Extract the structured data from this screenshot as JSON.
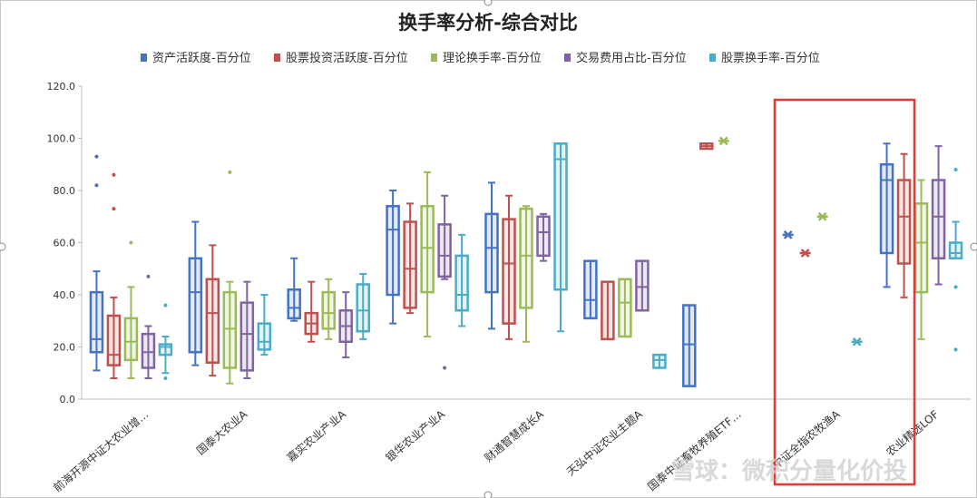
{
  "chart_data": {
    "type": "boxplot",
    "title": "换手率分析-综合对比",
    "ylim": [
      0,
      120
    ],
    "yticks": [
      "0.0",
      "20.0",
      "40.0",
      "60.0",
      "80.0",
      "100.0",
      "120.0"
    ],
    "grid": false,
    "legend_position": "top",
    "categories": [
      "前海开源中证大农业增…",
      "国泰大农业A",
      "嘉实农业产业A",
      "银华农业产业A",
      "财通智慧成长A",
      "天弘中证农业主题A",
      "国泰中证畜牧养殖ETF…",
      "中证全指农牧渔A",
      "农业精选LOF"
    ],
    "highlighted_category": "农业精选LOF",
    "series": [
      {
        "name": "资产活跃度-百分位",
        "color": "#4472c4",
        "boxes": [
          {
            "min": 11,
            "q1": 18,
            "median": 23,
            "q3": 41,
            "max": 49,
            "outliers": [
              82,
              93
            ]
          },
          {
            "min": 13,
            "q1": 18,
            "median": 41,
            "q3": 54,
            "max": 68,
            "outliers": []
          },
          {
            "min": 30,
            "q1": 31,
            "median": 35,
            "q3": 42,
            "max": 54,
            "outliers": []
          },
          {
            "min": 29,
            "q1": 40,
            "median": 65,
            "q3": 74,
            "max": 80,
            "outliers": []
          },
          {
            "min": 27,
            "q1": 41,
            "median": 58,
            "q3": 71,
            "max": 83,
            "outliers": []
          },
          {
            "min": 31,
            "q1": 31,
            "median": 38,
            "q3": 53,
            "max": 53,
            "outliers": []
          },
          {
            "min": 5,
            "q1": 5,
            "median": 21,
            "q3": 36,
            "max": 36,
            "outliers": []
          },
          {
            "single": 63
          },
          {
            "min": 43,
            "q1": 56,
            "median": 84,
            "q3": 90,
            "max": 98,
            "outliers": []
          }
        ]
      },
      {
        "name": "股票投资活跃度-百分位",
        "color": "#c0504d",
        "boxes": [
          {
            "min": 8,
            "q1": 13,
            "median": 17,
            "q3": 32,
            "max": 39,
            "outliers": [
              73,
              86
            ]
          },
          {
            "min": 9,
            "q1": 14,
            "median": 33,
            "q3": 46,
            "max": 59,
            "outliers": []
          },
          {
            "min": 22,
            "q1": 25,
            "median": 29,
            "q3": 33,
            "max": 45,
            "outliers": []
          },
          {
            "min": 33,
            "q1": 35,
            "median": 50,
            "q3": 68,
            "max": 75,
            "outliers": []
          },
          {
            "min": 23,
            "q1": 29,
            "median": 52,
            "q3": 69,
            "max": 78,
            "outliers": []
          },
          {
            "min": 23,
            "q1": 23,
            "median": 23,
            "q3": 45,
            "max": 45,
            "outliers": []
          },
          {
            "min": 96,
            "q1": 96,
            "median": 97,
            "q3": 98,
            "max": 98,
            "outliers": []
          },
          {
            "single": 56
          },
          {
            "min": 39,
            "q1": 52,
            "median": 70,
            "q3": 84,
            "max": 94,
            "outliers": []
          }
        ]
      },
      {
        "name": "理论换手率-百分位",
        "color": "#9bbb59",
        "boxes": [
          {
            "min": 8,
            "q1": 15,
            "median": 22,
            "q3": 31,
            "max": 43,
            "outliers": [
              60
            ]
          },
          {
            "min": 6,
            "q1": 12,
            "median": 27,
            "q3": 41,
            "max": 45,
            "outliers": [
              87
            ]
          },
          {
            "min": 23,
            "q1": 27,
            "median": 33,
            "q3": 41,
            "max": 46,
            "outliers": []
          },
          {
            "min": 24,
            "q1": 41,
            "median": 58,
            "q3": 74,
            "max": 87,
            "outliers": []
          },
          {
            "min": 22,
            "q1": 35,
            "median": 55,
            "q3": 73,
            "max": 74,
            "outliers": []
          },
          {
            "min": 24,
            "q1": 24,
            "median": 37,
            "q3": 46,
            "max": 46,
            "outliers": []
          },
          {
            "single": 99
          },
          {
            "single": 70
          },
          {
            "min": 23,
            "q1": 41,
            "median": 60,
            "q3": 75,
            "max": 84,
            "outliers": []
          }
        ]
      },
      {
        "name": "交易费用占比-百分位",
        "color": "#8064a2",
        "boxes": [
          {
            "min": 8,
            "q1": 12,
            "median": 18,
            "q3": 25,
            "max": 28,
            "outliers": [
              47
            ]
          },
          {
            "min": 8,
            "q1": 11,
            "median": 25,
            "q3": 37,
            "max": 45,
            "outliers": []
          },
          {
            "min": 16,
            "q1": 22,
            "median": 28,
            "q3": 34,
            "max": 41,
            "outliers": []
          },
          {
            "min": 46,
            "q1": 47,
            "median": 55,
            "q3": 67,
            "max": 78,
            "outliers": [
              12
            ]
          },
          {
            "min": 53,
            "q1": 55,
            "median": 64,
            "q3": 70,
            "max": 71,
            "outliers": []
          },
          {
            "min": 34,
            "q1": 34,
            "median": 43,
            "q3": 53,
            "max": 53,
            "outliers": []
          },
          null,
          null,
          {
            "min": 44,
            "q1": 54,
            "median": 70,
            "q3": 84,
            "max": 97,
            "outliers": []
          }
        ]
      },
      {
        "name": "股票换手率-百分位",
        "color": "#4bacc6",
        "boxes": [
          {
            "min": 10,
            "q1": 17,
            "median": 20,
            "q3": 21,
            "max": 24,
            "outliers": [
              8,
              36
            ]
          },
          {
            "min": 17,
            "q1": 19,
            "median": 22,
            "q3": 29,
            "max": 40,
            "outliers": []
          },
          {
            "min": 23,
            "q1": 26,
            "median": 34,
            "q3": 44,
            "max": 48,
            "outliers": []
          },
          {
            "min": 28,
            "q1": 34,
            "median": 40,
            "q3": 55,
            "max": 63,
            "outliers": []
          },
          {
            "min": 26,
            "q1": 42,
            "median": 92,
            "q3": 98,
            "max": 98,
            "outliers": []
          },
          {
            "min": 12,
            "q1": 12,
            "median": 15,
            "q3": 17,
            "max": 17,
            "outliers": []
          },
          null,
          {
            "single": 22
          },
          {
            "min": 54,
            "q1": 54,
            "median": 56,
            "q3": 60,
            "max": 68,
            "outliers": [
              19,
              43,
              88
            ]
          }
        ]
      }
    ]
  },
  "watermark": "雪球：微积分量化价投"
}
